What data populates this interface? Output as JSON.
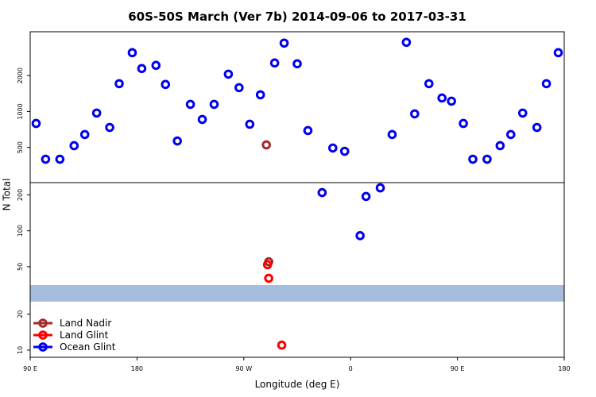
{
  "chart_data": {
    "type": "scatter",
    "title": "60S-50S March (Ver 7b)   2014-09-06 to 2017-03-31",
    "x_label": "Longitude (deg E)",
    "y_label": "N Total",
    "xlim": [
      90,
      540
    ],
    "xticks": [
      {
        "value": 90,
        "label": "90 E"
      },
      {
        "value": 180,
        "label": "180"
      },
      {
        "value": 270,
        "label": "90 W"
      },
      {
        "value": 360,
        "label": "0"
      },
      {
        "value": 450,
        "label": "90 E"
      },
      {
        "value": 540,
        "label": "180"
      }
    ],
    "ylim": [
      8.7,
      4660
    ],
    "y_log": true,
    "yticks": [
      10,
      20,
      50,
      100,
      200,
      500,
      1000,
      2000
    ],
    "band": [
      25.5,
      35.1
    ],
    "band_color": "#a5bcdc",
    "legend": "bottom-left",
    "series": [
      {
        "name": "Land Nadir",
        "color": "#a52a2a",
        "x": [
          289,
          291
        ],
        "values": [
          525,
          55
        ]
      },
      {
        "name": "Land Glint",
        "color": "#ff0000",
        "x": [
          290,
          291,
          302
        ],
        "values": [
          52,
          40,
          11
        ]
      },
      {
        "name": "Ocean Glint",
        "color": "#0000ee",
        "x": [
          95,
          103,
          115,
          127,
          136,
          146,
          157,
          165,
          176,
          184,
          196,
          204,
          214,
          225,
          235,
          245,
          257,
          266,
          275,
          284,
          296,
          304,
          315,
          324,
          336,
          345,
          355,
          368,
          373,
          385,
          395,
          407,
          414,
          426,
          437,
          445,
          455,
          463,
          475,
          486,
          495,
          505,
          517,
          525,
          535
        ],
        "values": [
          794,
          398,
          398,
          517,
          641,
          970,
          735,
          1711,
          3112,
          2291,
          2436,
          1686,
          566,
          1148,
          858,
          1148,
          2056,
          1585,
          782,
          1380,
          2551,
          3744,
          2512,
          692,
          209,
          494,
          464,
          91,
          194,
          229,
          641,
          3802,
          955,
          1711,
          1297,
          1221,
          794,
          398,
          398,
          517,
          641,
          970,
          735,
          1711,
          3112
        ]
      }
    ]
  }
}
